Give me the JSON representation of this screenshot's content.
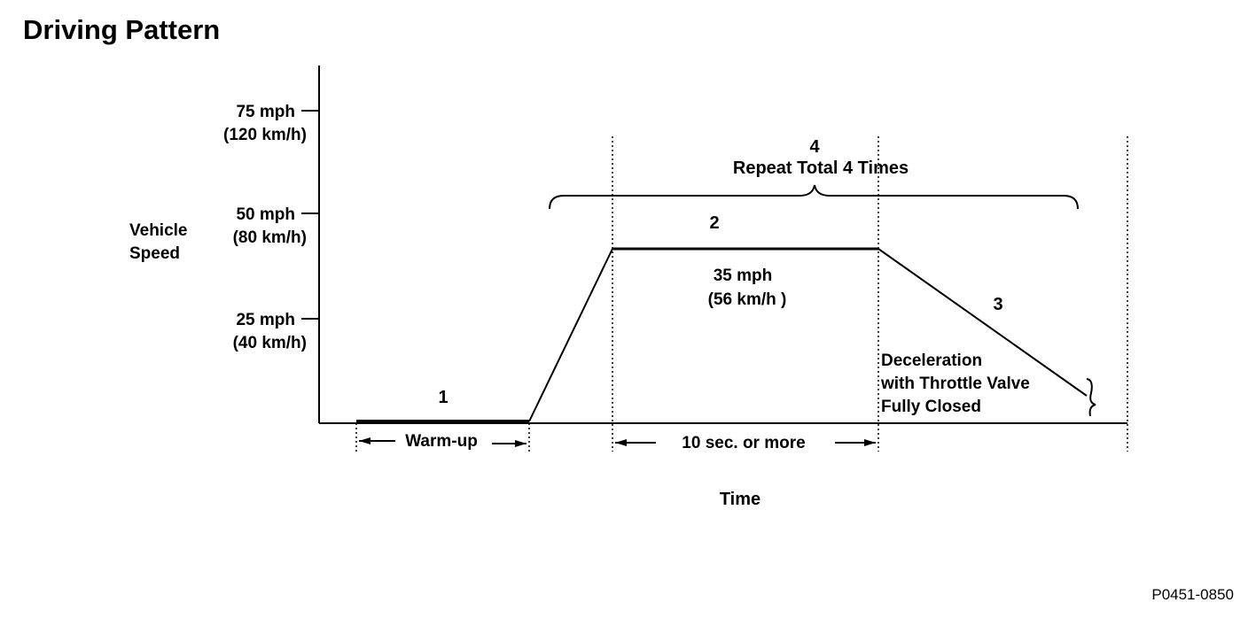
{
  "title": "Driving Pattern",
  "figure_id": "P0451-0850",
  "y_axis": {
    "label_line1": "Vehicle",
    "label_line2": "Speed",
    "ticks": [
      {
        "mph": "75 mph",
        "kmh": "(120 km/h)"
      },
      {
        "mph": "50 mph",
        "kmh": "(80 km/h)"
      },
      {
        "mph": "25 mph",
        "kmh": "(40 km/h)"
      }
    ]
  },
  "x_axis": {
    "label": "Time"
  },
  "steps": {
    "s1": "1",
    "s2": "2",
    "s3": "3",
    "s4": "4"
  },
  "repeat_label": "Repeat Total 4 Times",
  "cruise_speed": {
    "mph": "35 mph",
    "kmh": "(56 km/h )"
  },
  "decel": {
    "line1": "Deceleration",
    "line2": "with Throttle Valve",
    "line3": "Fully Closed"
  },
  "durations": {
    "warmup": "Warm-up",
    "hold": "10 sec. or more"
  },
  "speed_profile_mph": [
    {
      "phase": "1",
      "from": 0,
      "to": 0
    },
    {
      "phase": "ramp",
      "from": 0,
      "to": 35
    },
    {
      "phase": "2",
      "from": 35,
      "to": 35
    },
    {
      "phase": "3",
      "from": 35,
      "to": 7
    }
  ]
}
